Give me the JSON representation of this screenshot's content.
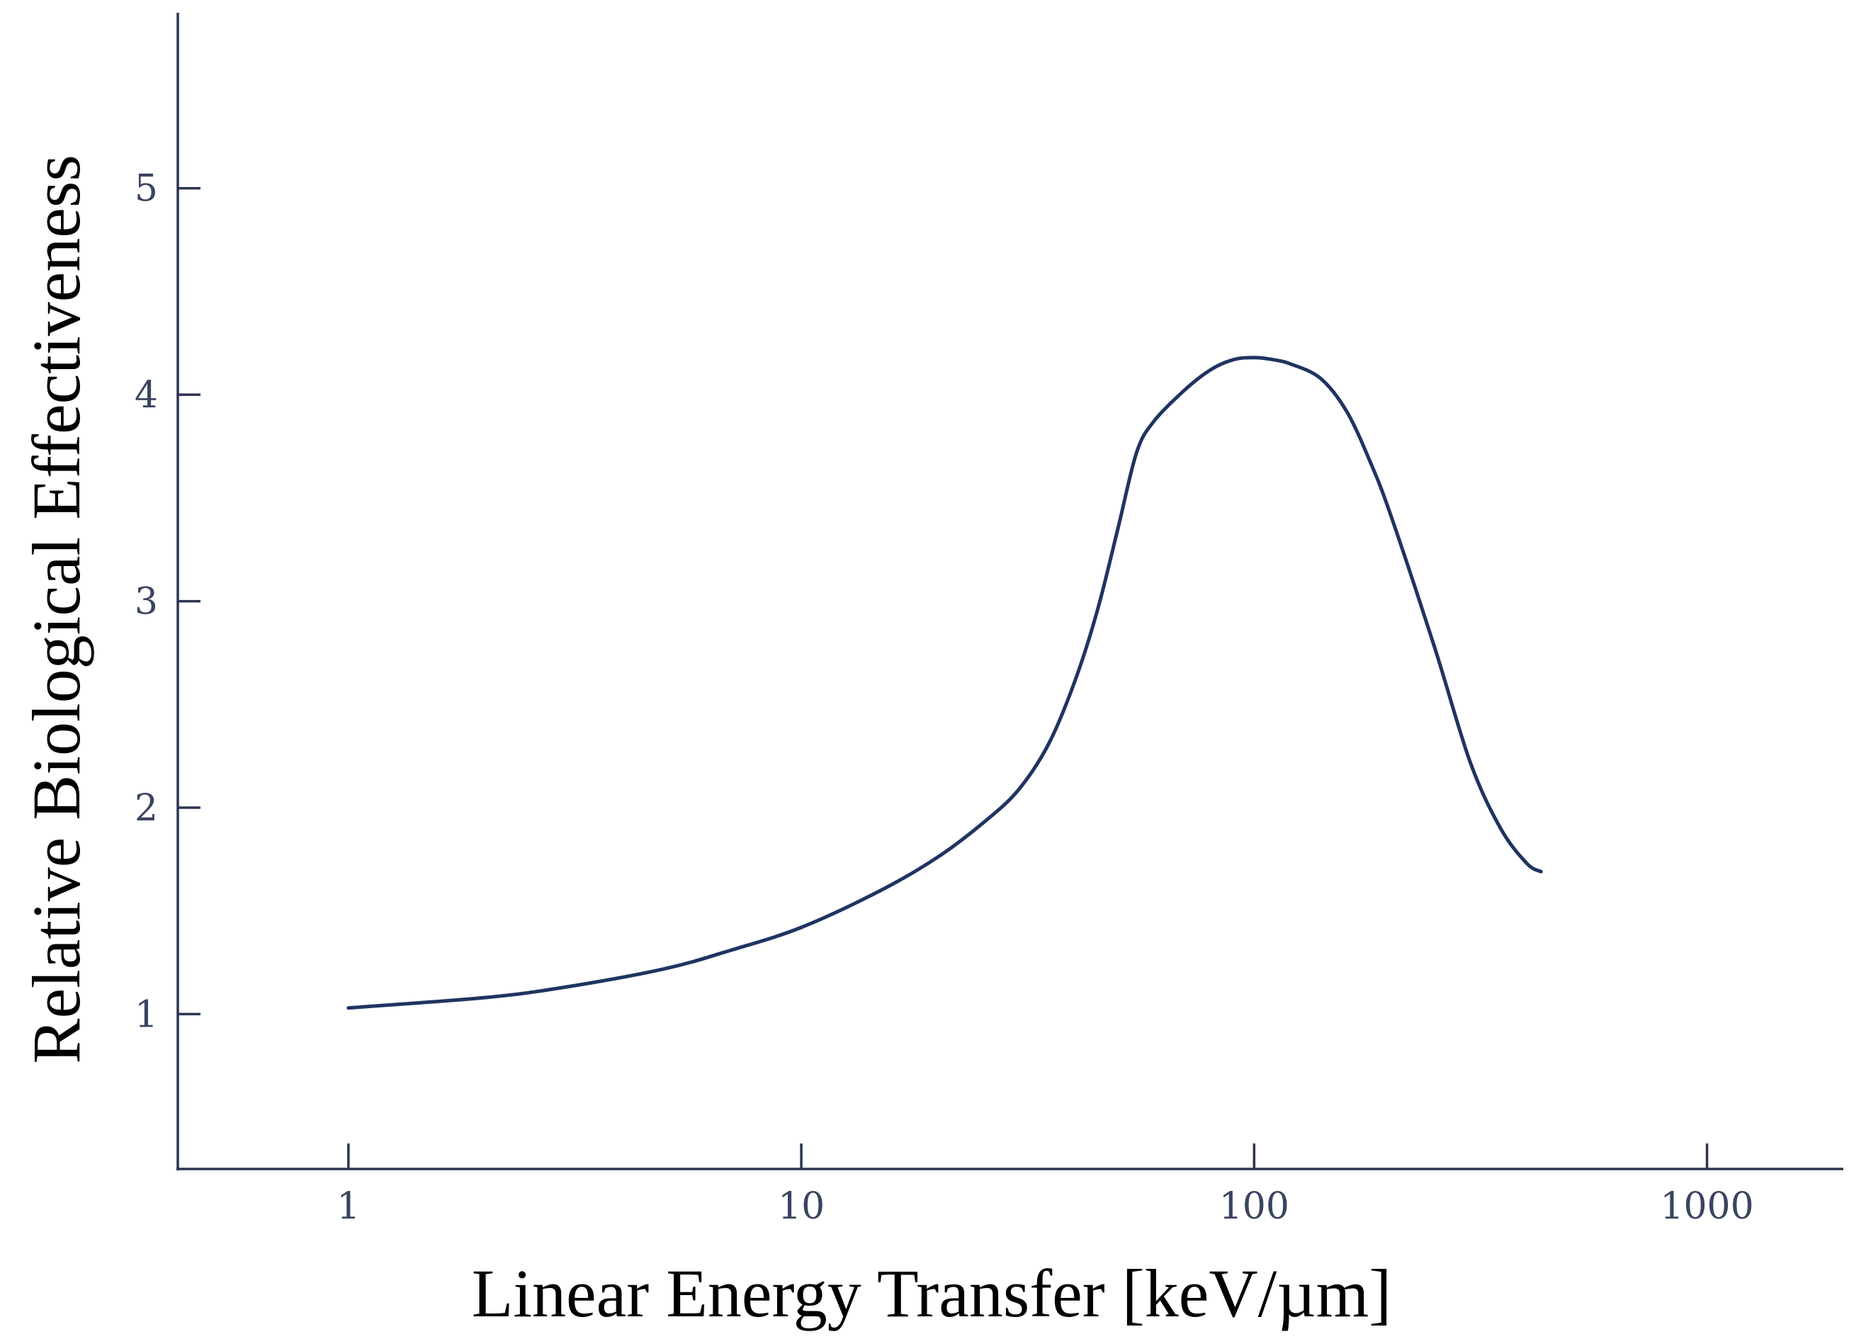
{
  "chart_data": {
    "type": "line",
    "title": "",
    "xlabel": "Linear Energy Transfer [keV/µm]",
    "ylabel": "Relative Biological Effectiveness",
    "xscale": "log",
    "xlim": [
      0.42,
      2000
    ],
    "ylim": [
      0.25,
      5.85
    ],
    "grid": false,
    "legend": "none",
    "xticks": [
      {
        "value": 1,
        "label": "1"
      },
      {
        "value": 10,
        "label": "10"
      },
      {
        "value": 100,
        "label": "100"
      },
      {
        "value": 1000,
        "label": "1000"
      }
    ],
    "yticks": [
      {
        "value": 1,
        "label": "1"
      },
      {
        "value": 2,
        "label": "2"
      },
      {
        "value": 3,
        "label": "3"
      },
      {
        "value": 4,
        "label": "4"
      },
      {
        "value": 5,
        "label": "5"
      }
    ],
    "colors": {
      "axis": "#2b3550",
      "line": "#1f3461",
      "tick_label": "#3a4460"
    },
    "series": [
      {
        "x": [
          1,
          2,
          3,
          5,
          7,
          10,
          15,
          20,
          25,
          30,
          35,
          40,
          45,
          50,
          55,
          60,
          70,
          80,
          90,
          100,
          110,
          120,
          140,
          160,
          180,
          200,
          250,
          300,
          350,
          400,
          430
        ],
        "y": [
          1.03,
          1.08,
          1.13,
          1.22,
          1.31,
          1.42,
          1.6,
          1.76,
          1.92,
          2.08,
          2.3,
          2.6,
          2.95,
          3.35,
          3.72,
          3.87,
          4.02,
          4.12,
          4.17,
          4.18,
          4.17,
          4.15,
          4.08,
          3.92,
          3.68,
          3.42,
          2.78,
          2.22,
          1.9,
          1.73,
          1.69
        ]
      }
    ]
  }
}
